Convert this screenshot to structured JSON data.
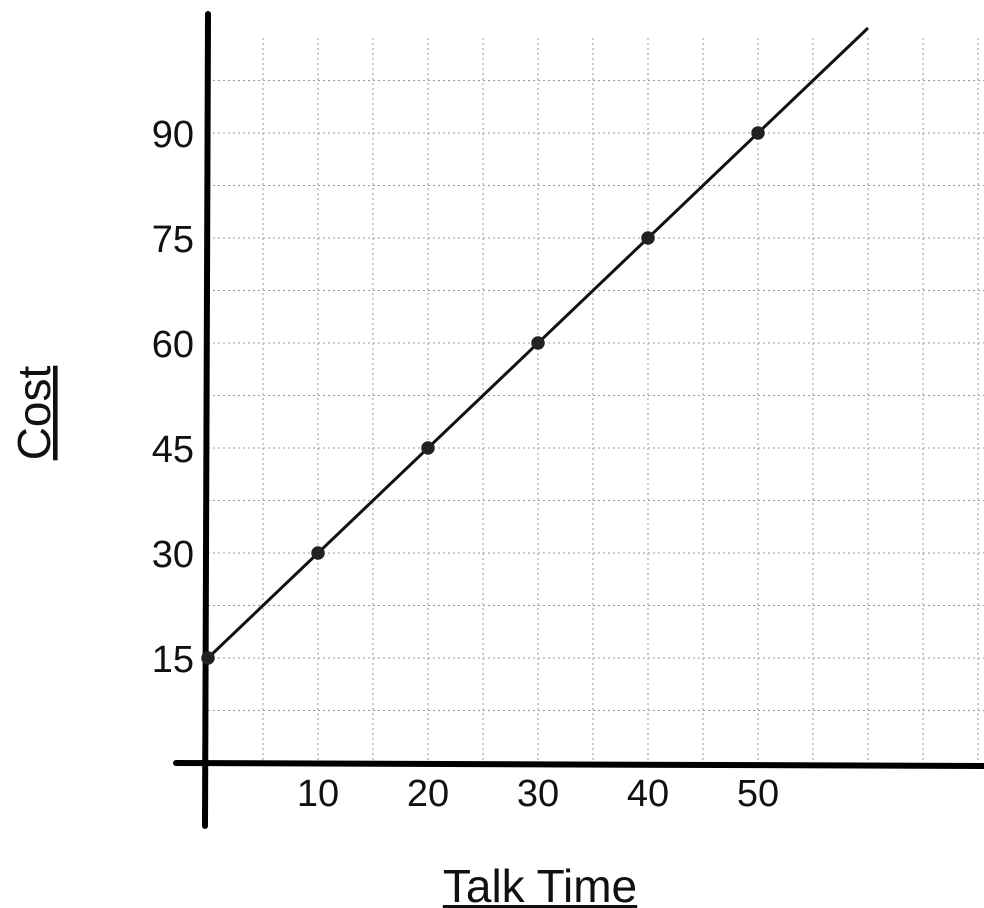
{
  "chart_data": {
    "type": "line",
    "title": "",
    "xlabel": "Talk Time",
    "ylabel": "Cost",
    "xlim": [
      0,
      70
    ],
    "ylim": [
      0,
      105
    ],
    "x_ticks": [
      10,
      20,
      30,
      40,
      50
    ],
    "y_ticks": [
      15,
      30,
      45,
      60,
      75,
      90
    ],
    "grid": true,
    "legend": "none",
    "series": [
      {
        "points": [
          {
            "x": 0,
            "y": 15
          },
          {
            "x": 10,
            "y": 30
          },
          {
            "x": 20,
            "y": 45
          },
          {
            "x": 30,
            "y": 60
          },
          {
            "x": 40,
            "y": 75
          },
          {
            "x": 50,
            "y": 90
          }
        ],
        "line": {
          "x_start": 0,
          "y_start": 15,
          "x_end": 60,
          "y_end": 105
        }
      }
    ],
    "colors": {
      "line": "#111111",
      "point": "#222222",
      "grid": "#9a9a9a",
      "axis": "#000000"
    }
  }
}
